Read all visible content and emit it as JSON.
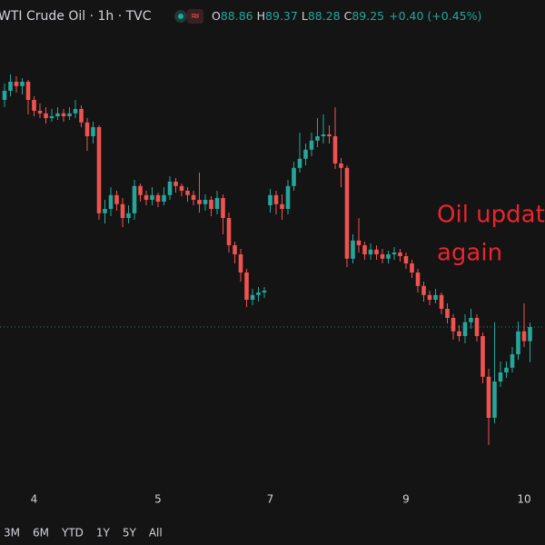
{
  "header": {
    "symbol": "WTI Crude Oil · 1h · TVC",
    "ohlc": [
      {
        "key": "O",
        "value": "88.86"
      },
      {
        "key": "H",
        "value": "89.37"
      },
      {
        "key": "L",
        "value": "88.28"
      },
      {
        "key": "C",
        "value": "89.25"
      }
    ],
    "change": "+0.40 (+0.45%)"
  },
  "chart_data": {
    "type": "candlestick",
    "up_color": "#26a69a",
    "down_color": "#ef5350",
    "annotation": [
      "Oil update",
      "again"
    ],
    "ylim": [
      85,
      98.25
    ],
    "last_price": 89.25,
    "categories": [
      null,
      null,
      null,
      null,
      null,
      "4",
      null,
      null,
      null,
      null,
      null,
      null,
      null,
      null,
      null,
      null,
      null,
      null,
      null,
      null,
      null,
      null,
      null,
      null,
      null,
      null,
      "5",
      null,
      null,
      null,
      null,
      null,
      null,
      null,
      null,
      null,
      null,
      null,
      null,
      null,
      null,
      null,
      null,
      null,
      null,
      "7",
      null,
      null,
      null,
      null,
      null,
      null,
      null,
      null,
      null,
      null,
      null,
      null,
      null,
      null,
      null,
      null,
      null,
      null,
      null,
      null,
      null,
      null,
      "9",
      null,
      null,
      null,
      null,
      null,
      null,
      null,
      null,
      null,
      null,
      null,
      null,
      null,
      null,
      null,
      null,
      null,
      null,
      null,
      "10",
      null
    ],
    "open": [
      95.5,
      95.75,
      96.0,
      95.88,
      96.0,
      95.5,
      95.2,
      95.13,
      95.0,
      95.05,
      95.13,
      95.05,
      95.13,
      95.25,
      94.88,
      94.5,
      94.75,
      92.38,
      92.5,
      92.88,
      92.63,
      92.25,
      92.38,
      93.13,
      92.88,
      92.75,
      92.88,
      92.7,
      92.88,
      93.25,
      93.13,
      93.0,
      92.88,
      92.75,
      92.63,
      92.75,
      92.5,
      92.8,
      92.25,
      91.5,
      91.25,
      90.75,
      90.0,
      90.13,
      90.2,
      92.6,
      92.88,
      92.63,
      92.5,
      93.13,
      93.63,
      93.88,
      94.13,
      94.38,
      94.5,
      94.55,
      94.5,
      93.75,
      93.63,
      91.13,
      91.63,
      91.5,
      91.25,
      91.38,
      91.25,
      91.13,
      91.25,
      91.3,
      91.2,
      91.0,
      90.75,
      90.38,
      90.13,
      90.0,
      90.13,
      89.75,
      89.5,
      89.13,
      89.0,
      89.38,
      89.5,
      89.0,
      87.88,
      86.75,
      87.75,
      88.0,
      88.13,
      88.5,
      89.13,
      88.86
    ],
    "high": [
      95.95,
      96.2,
      96.15,
      96.1,
      96.05,
      95.6,
      95.4,
      95.3,
      95.25,
      95.3,
      95.25,
      95.3,
      95.5,
      95.35,
      95.0,
      94.9,
      94.8,
      92.75,
      93.1,
      93.0,
      92.8,
      92.6,
      93.3,
      93.2,
      93.0,
      93.1,
      92.95,
      93.1,
      93.4,
      93.35,
      93.2,
      93.1,
      93.0,
      93.5,
      92.9,
      92.85,
      93.0,
      92.9,
      92.4,
      91.6,
      91.4,
      90.85,
      90.3,
      90.35,
      90.35,
      93.05,
      93.0,
      92.9,
      93.3,
      93.8,
      94.6,
      94.3,
      94.6,
      95.0,
      95.1,
      94.8,
      95.3,
      93.9,
      93.7,
      91.8,
      92.25,
      91.6,
      91.55,
      91.5,
      91.4,
      91.35,
      91.45,
      91.4,
      91.3,
      91.1,
      90.85,
      90.5,
      90.25,
      90.3,
      90.2,
      89.9,
      89.6,
      89.3,
      89.6,
      89.75,
      89.6,
      89.1,
      88.1,
      89.38,
      88.3,
      88.3,
      88.7,
      89.4,
      89.9,
      89.37
    ],
    "low": [
      95.3,
      95.6,
      95.7,
      95.65,
      95.1,
      95.05,
      95.0,
      94.85,
      94.9,
      94.95,
      94.9,
      94.95,
      95.0,
      94.75,
      94.1,
      94.3,
      92.2,
      92.1,
      92.3,
      92.45,
      92.0,
      92.1,
      92.2,
      92.7,
      92.6,
      92.6,
      92.55,
      92.6,
      92.75,
      92.95,
      92.85,
      92.7,
      92.6,
      92.4,
      92.45,
      92.3,
      92.35,
      91.8,
      91.3,
      91.0,
      90.5,
      89.8,
      89.85,
      89.95,
      90.05,
      92.4,
      92.35,
      92.2,
      92.35,
      93.0,
      93.5,
      93.7,
      93.95,
      94.2,
      94.3,
      94.3,
      93.6,
      93.1,
      90.9,
      91.0,
      91.3,
      91.1,
      91.1,
      91.1,
      91.0,
      91.0,
      91.1,
      91.05,
      90.85,
      90.6,
      90.2,
      89.95,
      89.85,
      89.9,
      89.6,
      89.35,
      88.9,
      88.85,
      88.8,
      89.2,
      88.85,
      87.7,
      86.0,
      86.6,
      87.6,
      87.85,
      88.0,
      88.35,
      88.7,
      88.28
    ],
    "close": [
      95.75,
      96.0,
      95.88,
      96.0,
      95.5,
      95.2,
      95.13,
      95.0,
      95.05,
      95.13,
      95.05,
      95.13,
      95.25,
      94.88,
      94.5,
      94.75,
      92.38,
      92.5,
      92.88,
      92.63,
      92.25,
      92.38,
      93.13,
      92.88,
      92.75,
      92.88,
      92.7,
      92.88,
      93.25,
      93.13,
      93.0,
      92.88,
      92.75,
      92.63,
      92.75,
      92.5,
      92.8,
      92.25,
      91.5,
      91.25,
      90.75,
      90.0,
      90.13,
      90.2,
      90.25,
      92.88,
      92.63,
      92.5,
      93.13,
      93.63,
      93.88,
      94.13,
      94.38,
      94.5,
      94.55,
      94.5,
      93.75,
      93.63,
      91.13,
      91.63,
      91.5,
      91.25,
      91.38,
      91.25,
      91.13,
      91.25,
      91.3,
      91.2,
      91.0,
      90.75,
      90.38,
      90.13,
      90.0,
      90.13,
      89.75,
      89.5,
      89.13,
      89.0,
      89.38,
      89.5,
      89.0,
      87.88,
      86.75,
      87.75,
      88.0,
      88.13,
      88.5,
      89.13,
      88.86,
      89.25
    ]
  },
  "toolbar": [
    "3M",
    "6M",
    "YTD",
    "1Y",
    "5Y",
    "All"
  ]
}
